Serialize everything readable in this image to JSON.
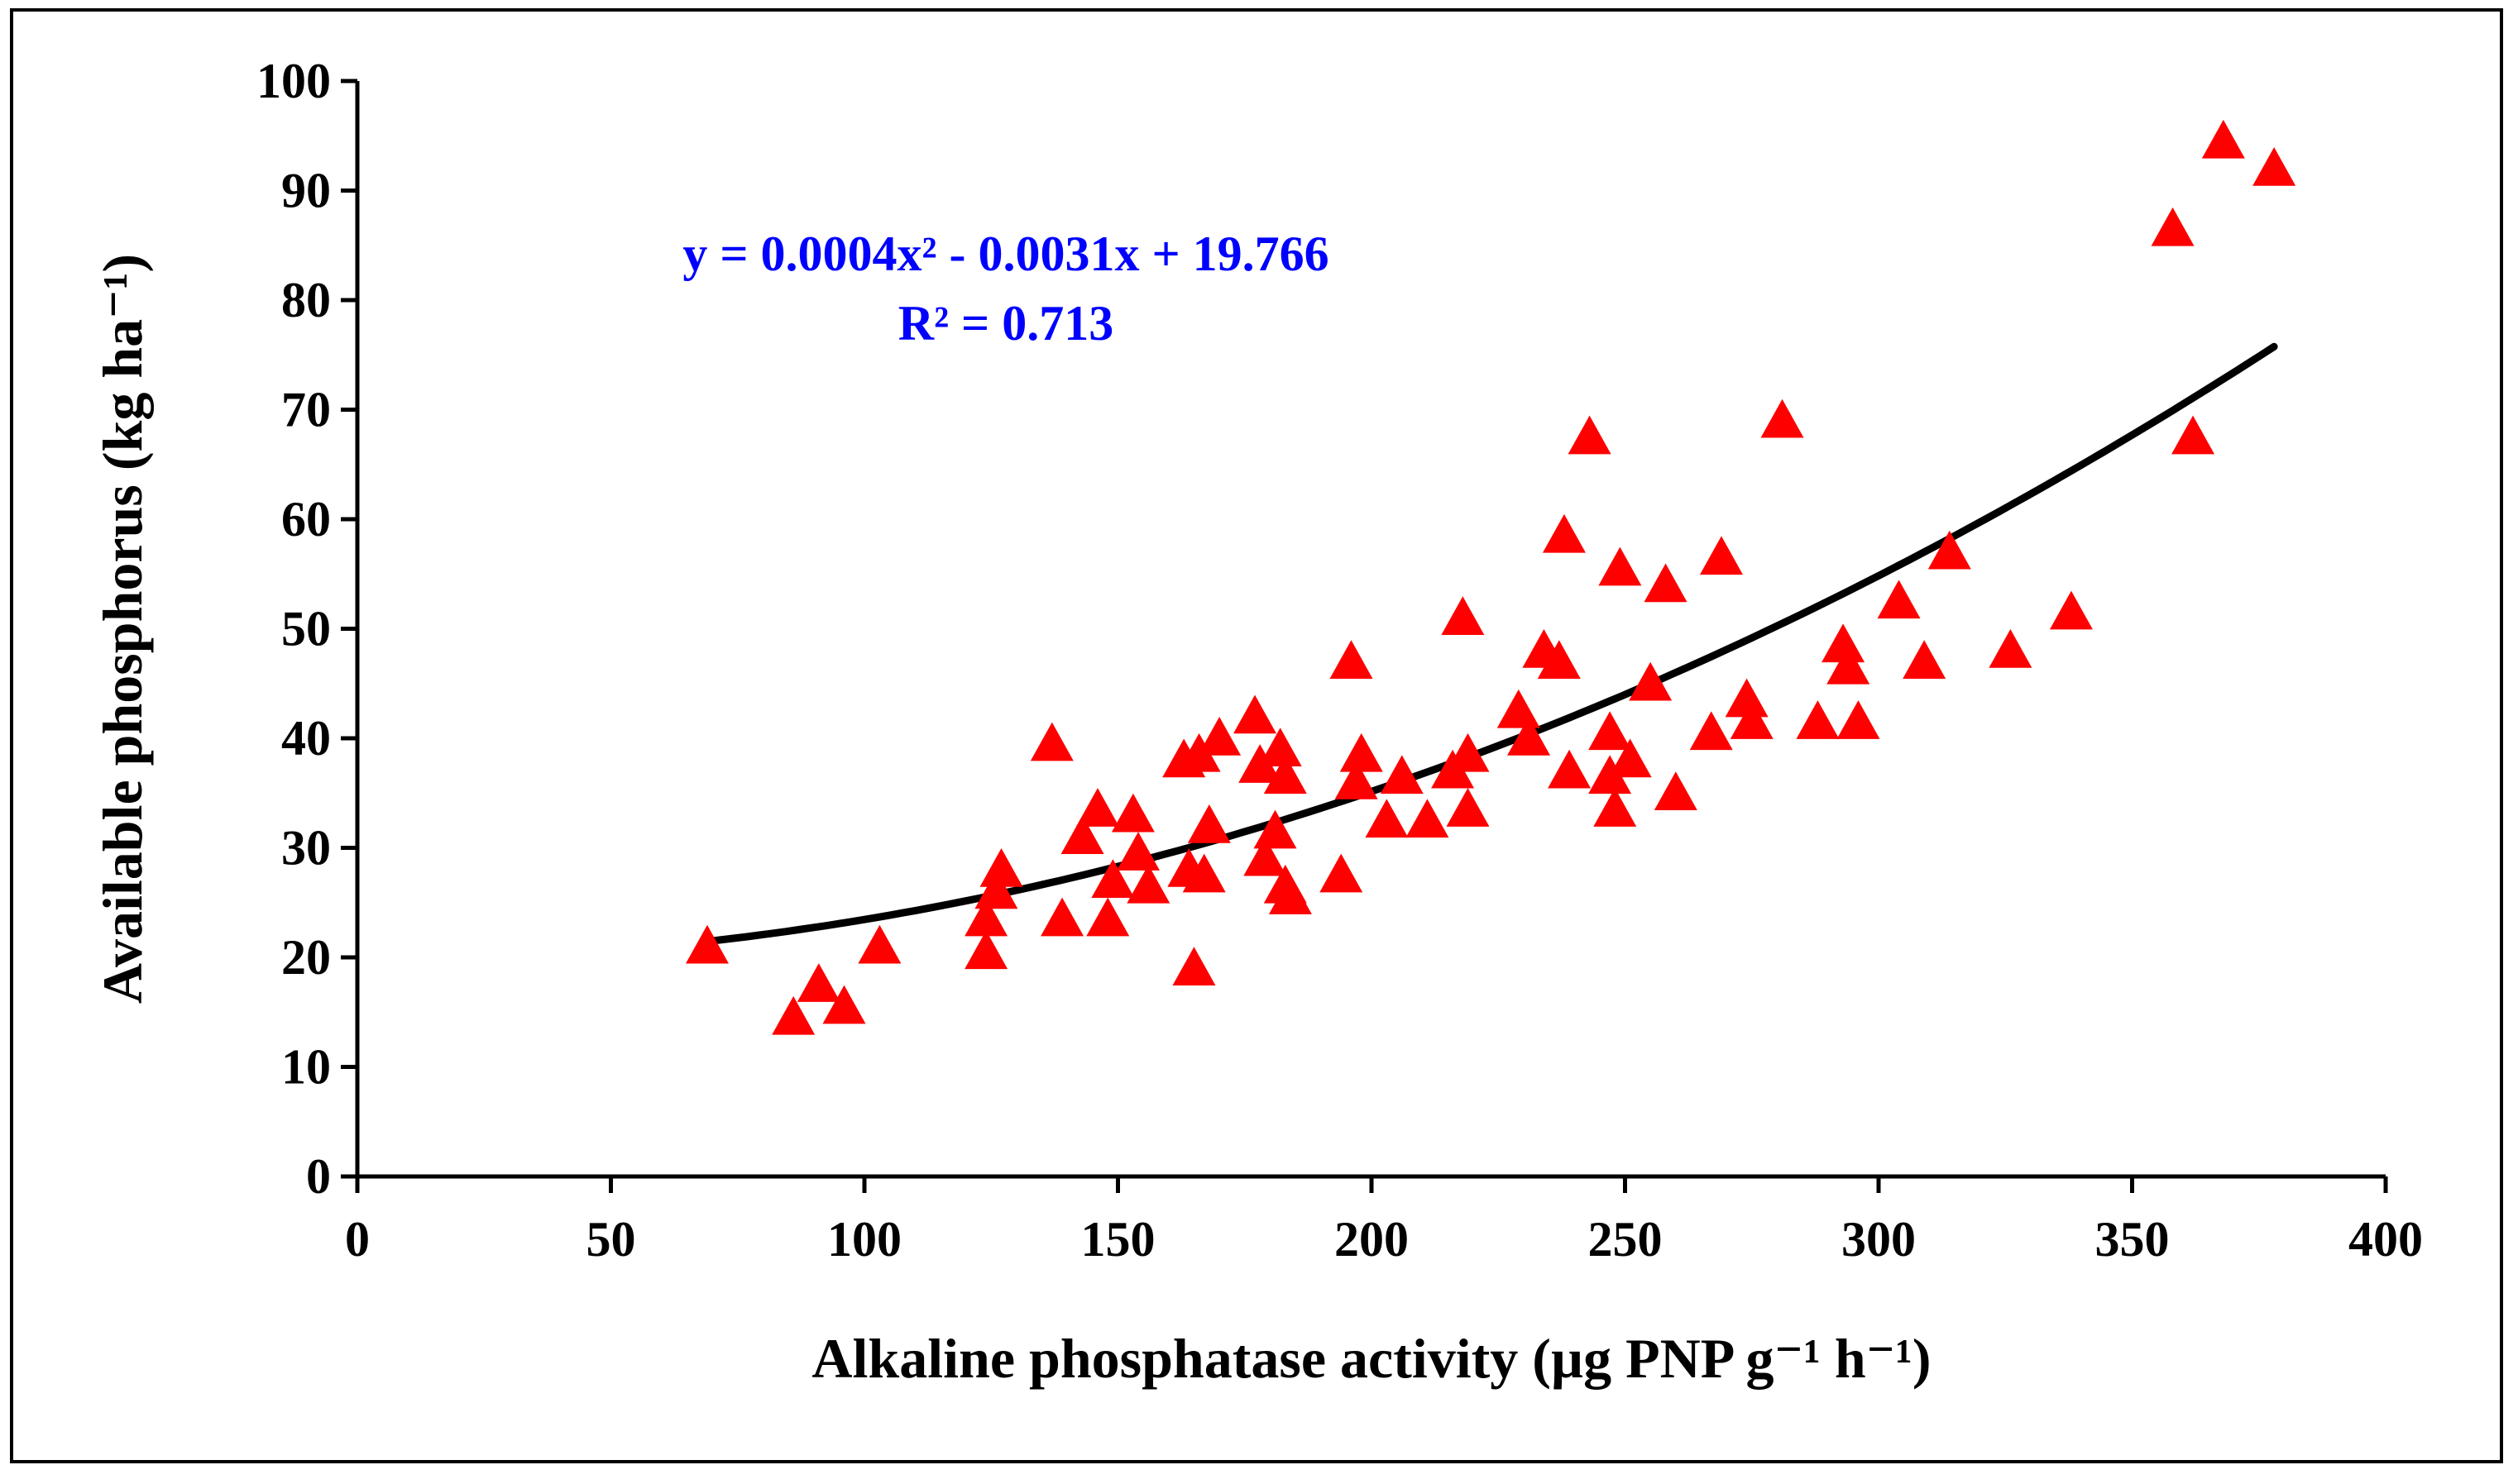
{
  "chart_data": {
    "type": "scatter",
    "title": "",
    "xlabel": "Alkaline phosphatase activity (µg PNP g⁻¹ h⁻¹)",
    "ylabel": "Available phosphorus (kg ha⁻¹)",
    "xlim": [
      0,
      400
    ],
    "ylim": [
      0,
      100
    ],
    "x_ticks": [
      0,
      50,
      100,
      150,
      200,
      250,
      300,
      350,
      400
    ],
    "y_ticks": [
      0,
      10,
      20,
      30,
      40,
      50,
      60,
      70,
      80,
      90,
      100
    ],
    "grid": false,
    "marker": "triangle",
    "marker_color": "#ff0000",
    "trendline": {
      "type": "polynomial-2",
      "coefficients": [
        0.0004,
        -0.0031,
        19.766
      ],
      "x_range": [
        69,
        378
      ],
      "color": "#000000",
      "equation_label": "y = 0.0004x² - 0.0031x + 19.766",
      "r2_label": "R² = 0.713",
      "label_color": "#0000ff"
    },
    "points": [
      {
        "x": 69,
        "y": 21
      },
      {
        "x": 86,
        "y": 14.5
      },
      {
        "x": 91,
        "y": 17.5
      },
      {
        "x": 96,
        "y": 15.5
      },
      {
        "x": 103,
        "y": 21
      },
      {
        "x": 124,
        "y": 20.5
      },
      {
        "x": 124,
        "y": 23.5
      },
      {
        "x": 126,
        "y": 26
      },
      {
        "x": 127,
        "y": 28
      },
      {
        "x": 137,
        "y": 39.5
      },
      {
        "x": 139,
        "y": 23.5
      },
      {
        "x": 143,
        "y": 31
      },
      {
        "x": 146,
        "y": 33.5
      },
      {
        "x": 148,
        "y": 23.5
      },
      {
        "x": 149,
        "y": 27
      },
      {
        "x": 153,
        "y": 33
      },
      {
        "x": 154,
        "y": 29.5
      },
      {
        "x": 156,
        "y": 26.5
      },
      {
        "x": 163,
        "y": 38
      },
      {
        "x": 164,
        "y": 28
      },
      {
        "x": 165,
        "y": 19
      },
      {
        "x": 166,
        "y": 38.5
      },
      {
        "x": 167,
        "y": 27.5
      },
      {
        "x": 168,
        "y": 32
      },
      {
        "x": 170,
        "y": 40
      },
      {
        "x": 177,
        "y": 42
      },
      {
        "x": 178,
        "y": 37.5
      },
      {
        "x": 179,
        "y": 29
      },
      {
        "x": 181,
        "y": 31.5
      },
      {
        "x": 182,
        "y": 39
      },
      {
        "x": 183,
        "y": 36.5
      },
      {
        "x": 183,
        "y": 26.5
      },
      {
        "x": 184,
        "y": 25.5
      },
      {
        "x": 194,
        "y": 27.5
      },
      {
        "x": 196,
        "y": 47
      },
      {
        "x": 197,
        "y": 36
      },
      {
        "x": 198,
        "y": 38.5
      },
      {
        "x": 203,
        "y": 32.5
      },
      {
        "x": 206,
        "y": 36.5
      },
      {
        "x": 211,
        "y": 32.5
      },
      {
        "x": 216,
        "y": 37
      },
      {
        "x": 218,
        "y": 51
      },
      {
        "x": 219,
        "y": 33.5
      },
      {
        "x": 219,
        "y": 38.5
      },
      {
        "x": 229,
        "y": 42.5
      },
      {
        "x": 231,
        "y": 40
      },
      {
        "x": 234,
        "y": 48
      },
      {
        "x": 237,
        "y": 47
      },
      {
        "x": 238,
        "y": 58.5
      },
      {
        "x": 239,
        "y": 37
      },
      {
        "x": 243,
        "y": 67.5
      },
      {
        "x": 247,
        "y": 40.5
      },
      {
        "x": 247,
        "y": 36.5
      },
      {
        "x": 248,
        "y": 33.5
      },
      {
        "x": 249,
        "y": 55.5
      },
      {
        "x": 251,
        "y": 38
      },
      {
        "x": 255,
        "y": 45
      },
      {
        "x": 258,
        "y": 54
      },
      {
        "x": 260,
        "y": 35
      },
      {
        "x": 267,
        "y": 40.5
      },
      {
        "x": 269,
        "y": 56.5
      },
      {
        "x": 274,
        "y": 43.5
      },
      {
        "x": 275,
        "y": 41.5
      },
      {
        "x": 281,
        "y": 69
      },
      {
        "x": 288,
        "y": 41.5
      },
      {
        "x": 293,
        "y": 48.5
      },
      {
        "x": 294,
        "y": 46.5
      },
      {
        "x": 296,
        "y": 41.5
      },
      {
        "x": 304,
        "y": 52.5
      },
      {
        "x": 309,
        "y": 47
      },
      {
        "x": 314,
        "y": 57
      },
      {
        "x": 326,
        "y": 48
      },
      {
        "x": 338,
        "y": 51.5
      },
      {
        "x": 358,
        "y": 86.5
      },
      {
        "x": 362,
        "y": 67.5
      },
      {
        "x": 368,
        "y": 94.5
      },
      {
        "x": 378,
        "y": 92
      }
    ]
  }
}
